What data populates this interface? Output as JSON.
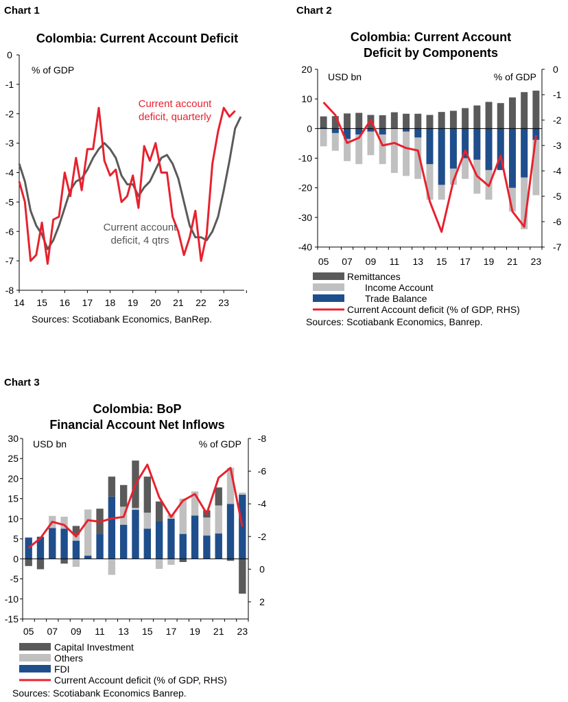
{
  "charts": [
    {
      "label": "Chart 1",
      "title": [
        "Colombia: Current Account Deficit"
      ],
      "unit_left": "% of GDP",
      "y_ticks": [
        "0",
        "-1",
        "-2",
        "-3",
        "-4",
        "-5",
        "-6",
        "-7",
        "-8"
      ],
      "x_ticks": [
        "14",
        "15",
        "16",
        "17",
        "18",
        "19",
        "20",
        "21",
        "22",
        "23"
      ],
      "annotations": [
        {
          "lines": [
            "Current account",
            "deficit, quarterly"
          ],
          "color": "#e8212e"
        },
        {
          "lines": [
            "Current account",
            "deficit, 4 qtrs"
          ],
          "color": "#555555"
        }
      ],
      "source": "Sources: Scotiabank Economics, BanRep."
    },
    {
      "label": "Chart 2",
      "title": [
        "Colombia: Current Account",
        "Deficit by Components"
      ],
      "unit_left": "USD bn",
      "unit_right": "% of GDP",
      "y_ticks": [
        "20",
        "10",
        "0",
        "-10",
        "-20",
        "-30",
        "-40"
      ],
      "y2_ticks": [
        "0",
        "-1",
        "-2",
        "-3",
        "-4",
        "-5",
        "-6",
        "-7"
      ],
      "x_ticks": [
        "05",
        "07",
        "09",
        "11",
        "13",
        "15",
        "17",
        "19",
        "21",
        "23"
      ],
      "legend": [
        "Remittances",
        "Income Account",
        "Trade Balance",
        "Current Account deficit (% of GDP, RHS)"
      ],
      "source": "Sources: Scotiabank Economics, Banrep."
    },
    {
      "label": "Chart 3",
      "title": [
        "Colombia: BoP",
        "Financial Account Net Inflows"
      ],
      "unit_left": "USD bn",
      "unit_right": "% of GDP",
      "y_ticks": [
        "30",
        "25",
        "20",
        "15",
        "10",
        "5",
        "0",
        "-5",
        "-10",
        "-15"
      ],
      "y2_ticks": [
        "-8",
        "-6",
        "-4",
        "-2",
        "0",
        "2"
      ],
      "x_ticks": [
        "05",
        "07",
        "09",
        "11",
        "13",
        "15",
        "17",
        "19",
        "21",
        "23"
      ],
      "legend": [
        "Capital Investment",
        "Others",
        "FDI",
        "Current Account deficit (% of GDP, RHS)"
      ],
      "source": "Sources: Scotiabank Economics Banrep."
    }
  ],
  "colors": {
    "red": "#e8212e",
    "dark_gray": "#5a5a5a",
    "light_gray": "#c0c0c0",
    "navy": "#1f4e8c"
  },
  "chart_data": [
    {
      "type": "line",
      "ylim": [
        -8,
        0
      ],
      "xlim": [
        2014,
        2023.9
      ],
      "series": [
        {
          "name": "Current account deficit, quarterly",
          "color": "#e8212e",
          "x": [
            2014.0,
            2014.25,
            2014.5,
            2014.75,
            2015.0,
            2015.25,
            2015.5,
            2015.75,
            2016.0,
            2016.25,
            2016.5,
            2016.75,
            2017.0,
            2017.25,
            2017.5,
            2017.75,
            2018.0,
            2018.25,
            2018.5,
            2018.75,
            2019.0,
            2019.25,
            2019.5,
            2019.75,
            2020.0,
            2020.25,
            2020.5,
            2020.75,
            2021.0,
            2021.25,
            2021.5,
            2021.75,
            2022.0,
            2022.25,
            2022.5,
            2022.75,
            2023.0,
            2023.25,
            2023.5,
            2023.75
          ],
          "values": [
            -4.3,
            -5.0,
            -7.0,
            -6.8,
            -5.7,
            -7.1,
            -5.6,
            -5.5,
            -4.0,
            -4.8,
            -3.5,
            -4.6,
            -3.2,
            -3.2,
            -1.8,
            -3.6,
            -4.1,
            -3.9,
            -5.0,
            -4.8,
            -4.1,
            -5.2,
            -3.1,
            -3.6,
            -3.0,
            -4.0,
            -4.0,
            -5.5,
            -6.0,
            -6.8,
            -6.2,
            -5.3,
            -7.0,
            -6.1,
            -3.7,
            -2.6,
            -1.8,
            -2.1,
            -1.9,
            null
          ]
        },
        {
          "name": "Current account deficit, 4 qtrs",
          "color": "#5a5a5a",
          "x": [
            2014.0,
            2014.25,
            2014.5,
            2014.75,
            2015.0,
            2015.25,
            2015.5,
            2015.75,
            2016.0,
            2016.25,
            2016.5,
            2016.75,
            2017.0,
            2017.25,
            2017.5,
            2017.75,
            2018.0,
            2018.25,
            2018.5,
            2018.75,
            2019.0,
            2019.25,
            2019.5,
            2019.75,
            2020.0,
            2020.25,
            2020.5,
            2020.75,
            2021.0,
            2021.25,
            2021.5,
            2021.75,
            2022.0,
            2022.25,
            2022.5,
            2022.75,
            2023.0,
            2023.25,
            2023.5,
            2023.75
          ],
          "values": [
            -3.7,
            -4.3,
            -5.3,
            -5.8,
            -6.1,
            -6.6,
            -6.3,
            -5.8,
            -5.2,
            -4.6,
            -4.3,
            -4.2,
            -3.9,
            -3.5,
            -3.2,
            -3.0,
            -3.2,
            -3.5,
            -4.1,
            -4.4,
            -4.4,
            -4.8,
            -4.5,
            -4.3,
            -3.9,
            -3.5,
            -3.4,
            -3.7,
            -4.2,
            -5.0,
            -5.8,
            -6.2,
            -6.2,
            -6.3,
            -6.0,
            -5.5,
            -4.6,
            -3.6,
            -2.5,
            -2.1
          ]
        }
      ]
    },
    {
      "type": "bar",
      "categories": [
        "05",
        "06",
        "07",
        "08",
        "09",
        "10",
        "11",
        "12",
        "13",
        "14",
        "15",
        "16",
        "17",
        "18",
        "19",
        "20",
        "21",
        "22",
        "23"
      ],
      "ylim": [
        -40,
        20
      ],
      "y2lim": [
        -7,
        0
      ],
      "series": [
        {
          "name": "Remittances",
          "color": "#5a5a5a",
          "values": [
            4.1,
            4.2,
            5.1,
            5.3,
            4.6,
            4.5,
            5.5,
            5.0,
            5.0,
            4.6,
            5.6,
            6.0,
            6.9,
            7.8,
            9.0,
            8.6,
            10.5,
            12.3,
            12.8
          ]
        },
        {
          "name": "Income Account",
          "color": "#c0c0c0",
          "values": [
            -6.0,
            -7.5,
            -11.0,
            -12.0,
            -9.0,
            -12.0,
            -15.0,
            -16.0,
            -17.0,
            -24.0,
            -24.0,
            -19.0,
            -17.0,
            -22.0,
            -24.0,
            -14.0,
            -28.0,
            -34.0,
            -22.5
          ]
        },
        {
          "name": "Trade Balance",
          "color": "#1f4e8c",
          "values": [
            0.5,
            -1.5,
            -3.5,
            -2.0,
            -1.0,
            -2.0,
            0.0,
            -1.0,
            -3.0,
            -12.0,
            -19.0,
            -13.5,
            -10.0,
            -10.5,
            -14.0,
            -14.0,
            -20.0,
            -16.5,
            -3.8
          ]
        },
        {
          "name": "Current Account deficit (% of GDP, RHS)",
          "type": "line",
          "axis": "right",
          "color": "#e8212e",
          "values": [
            -1.3,
            -1.8,
            -2.9,
            -2.7,
            -2.0,
            -3.0,
            -2.9,
            -3.1,
            -3.2,
            -5.2,
            -6.4,
            -4.4,
            -3.2,
            -4.2,
            -4.6,
            -3.4,
            -5.6,
            -6.2,
            -2.6
          ]
        }
      ]
    },
    {
      "type": "bar",
      "categories": [
        "05",
        "06",
        "07",
        "08",
        "09",
        "10",
        "11",
        "12",
        "13",
        "14",
        "15",
        "16",
        "17",
        "18",
        "19",
        "20",
        "21",
        "22",
        "23"
      ],
      "ylim": [
        -15,
        30
      ],
      "y2lim": [
        2,
        -8
      ],
      "series": [
        {
          "name": "FDI",
          "color": "#1f4e8c",
          "values": [
            5.3,
            5.5,
            7.7,
            7.5,
            4.5,
            0.8,
            6.2,
            15.5,
            8.5,
            12.2,
            7.5,
            9.3,
            10.0,
            6.2,
            10.8,
            5.8,
            6.3,
            13.7,
            16.0
          ]
        },
        {
          "name": "Others",
          "color": "#c0c0c0",
          "values": [
            0.0,
            0.0,
            3.0,
            3.0,
            1.5,
            11.5,
            0.0,
            0.0,
            4.5,
            0.5,
            4.0,
            0.0,
            1.0,
            8.8,
            6.0,
            4.5,
            7.0,
            9.0,
            0.5
          ]
        },
        {
          "name": "Capital Investment",
          "color": "#5a5a5a",
          "values": [
            0.0,
            0.0,
            0.0,
            0.0,
            2.2,
            0.0,
            6.3,
            5.0,
            5.4,
            11.8,
            9.0,
            5.0,
            0.0,
            0.0,
            0.0,
            1.8,
            4.5,
            0.0,
            -8.7
          ]
        },
        {
          "name": "Others (negative)",
          "color": "#c0c0c0",
          "values": [
            0.0,
            0.0,
            0.0,
            0.0,
            -2.0,
            0.0,
            0.0,
            -4.0,
            0.0,
            0.0,
            0.0,
            -2.5,
            -1.5,
            0.0,
            0.0,
            0.0,
            0.0,
            0.0,
            0.0
          ]
        },
        {
          "name": "Capital Investment (negative)",
          "color": "#5a5a5a",
          "values": [
            -1.8,
            -2.6,
            0.0,
            -1.2,
            0.0,
            0.0,
            0.0,
            0.0,
            0.0,
            0.0,
            0.0,
            0.0,
            0.0,
            -0.8,
            0.0,
            0.0,
            0.0,
            -0.5,
            0.0
          ]
        },
        {
          "name": "Current Account deficit (% of GDP, RHS)",
          "type": "line",
          "axis": "right",
          "color": "#e8212e",
          "values": [
            -1.3,
            -1.9,
            -2.9,
            -2.7,
            -2.0,
            -3.0,
            -2.9,
            -3.1,
            -3.2,
            -5.2,
            -6.4,
            -4.4,
            -3.2,
            -4.2,
            -4.6,
            -3.4,
            -5.6,
            -6.2,
            -2.6
          ]
        }
      ]
    }
  ]
}
